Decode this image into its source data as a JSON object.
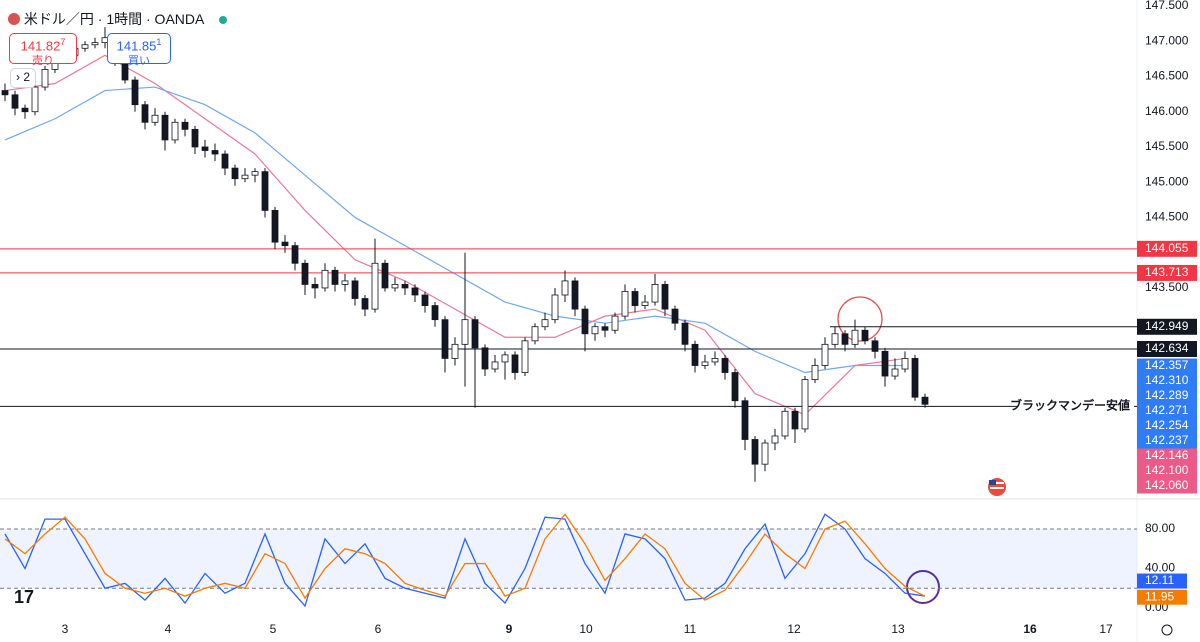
{
  "header": {
    "title": "米ドル／円 · 1時間 · OANDA",
    "sell": {
      "price": "141.82",
      "pipette": "7",
      "label": "売り"
    },
    "buy": {
      "price": "141.85",
      "pipette": "1",
      "label": "買い"
    },
    "indicators": 2
  },
  "chart_data": [
    {
      "type": "candlestick",
      "up_color": "#ffffff",
      "down_color": "#131722",
      "ylim": [
        140.52,
        147.585
      ],
      "xlim": [
        -0.5,
        113.2
      ],
      "yticks": [
        {
          "value": 147.5,
          "label": "147.500"
        },
        {
          "value": 147,
          "label": "147.000"
        },
        {
          "value": 146.5,
          "label": "146.500"
        },
        {
          "value": 146,
          "label": "146.000"
        },
        {
          "value": 145.5,
          "label": "145.500"
        },
        {
          "value": 145,
          "label": "145.000"
        },
        {
          "value": 144.5,
          "label": "144.500"
        },
        {
          "value": 143.5,
          "label": "143.500"
        }
      ],
      "xticks": [
        {
          "value": 6,
          "label": "3"
        },
        {
          "value": 16.3,
          "label": "4"
        },
        {
          "value": 26.8,
          "label": "5"
        },
        {
          "value": 37.3,
          "label": "6"
        },
        {
          "value": 50.4,
          "label": "9",
          "bold": true
        },
        {
          "value": 58.1,
          "label": "10"
        },
        {
          "value": 68.5,
          "label": "11"
        },
        {
          "value": 78.9,
          "label": "12"
        },
        {
          "value": 89.3,
          "label": "13"
        },
        {
          "value": 102.5,
          "label": "16",
          "bold": true
        },
        {
          "value": 110.1,
          "label": "17"
        }
      ],
      "candles": [
        [
          146.3,
          146.4,
          146.15,
          146.24
        ],
        [
          146.24,
          146.3,
          145.95,
          146.05
        ],
        [
          146.05,
          146.1,
          145.9,
          146.0
        ],
        [
          146.0,
          146.4,
          145.95,
          146.35
        ],
        [
          146.35,
          146.65,
          146.3,
          146.6
        ],
        [
          146.6,
          146.8,
          146.55,
          146.75
        ],
        [
          146.75,
          146.9,
          146.7,
          146.8
        ],
        [
          146.8,
          146.95,
          146.75,
          146.9
        ],
        [
          146.9,
          147.0,
          146.85,
          146.95
        ],
        [
          146.95,
          147.05,
          146.9,
          146.98
        ],
        [
          146.98,
          147.2,
          146.9,
          147.05
        ],
        [
          147.05,
          147.1,
          146.65,
          146.7
        ],
        [
          146.7,
          146.75,
          146.4,
          146.45
        ],
        [
          146.45,
          146.5,
          146.0,
          146.1
        ],
        [
          146.1,
          146.15,
          145.75,
          145.85
        ],
        [
          145.85,
          146.05,
          145.8,
          145.95
        ],
        [
          145.95,
          146.0,
          145.45,
          145.6
        ],
        [
          145.6,
          145.9,
          145.55,
          145.85
        ],
        [
          145.85,
          145.9,
          145.65,
          145.75
        ],
        [
          145.75,
          145.8,
          145.4,
          145.5
        ],
        [
          145.5,
          145.6,
          145.35,
          145.45
        ],
        [
          145.45,
          145.55,
          145.3,
          145.4
        ],
        [
          145.4,
          145.45,
          145.1,
          145.2
        ],
        [
          145.2,
          145.25,
          144.95,
          145.05
        ],
        [
          145.05,
          145.2,
          145.0,
          145.1
        ],
        [
          145.1,
          145.2,
          145.0,
          145.15
        ],
        [
          145.15,
          145.2,
          144.5,
          144.6
        ],
        [
          144.6,
          144.65,
          144.05,
          144.15
        ],
        [
          144.15,
          144.25,
          144.0,
          144.1
        ],
        [
          144.1,
          144.15,
          143.75,
          143.85
        ],
        [
          143.85,
          143.9,
          143.4,
          143.55
        ],
        [
          143.55,
          143.65,
          143.35,
          143.5
        ],
        [
          143.5,
          143.85,
          143.45,
          143.75
        ],
        [
          143.75,
          143.8,
          143.45,
          143.55
        ],
        [
          143.55,
          143.7,
          143.45,
          143.6
        ],
        [
          143.6,
          143.65,
          143.25,
          143.35
        ],
        [
          143.35,
          143.4,
          143.1,
          143.2
        ],
        [
          143.2,
          144.2,
          143.15,
          143.85
        ],
        [
          143.85,
          143.9,
          143.45,
          143.5
        ],
        [
          143.5,
          143.65,
          143.45,
          143.55
        ],
        [
          143.55,
          143.6,
          143.4,
          143.5
        ],
        [
          143.5,
          143.55,
          143.3,
          143.4
        ],
        [
          143.4,
          143.45,
          143.15,
          143.25
        ],
        [
          143.25,
          143.3,
          142.95,
          143.05
        ],
        [
          143.05,
          143.1,
          142.3,
          142.5
        ],
        [
          142.5,
          142.8,
          142.4,
          142.7
        ],
        [
          142.7,
          144.0,
          142.1,
          143.05
        ],
        [
          143.05,
          143.1,
          141.8,
          142.65
        ],
        [
          142.65,
          142.7,
          142.25,
          142.35
        ],
        [
          142.35,
          142.55,
          142.3,
          142.45
        ],
        [
          142.45,
          142.6,
          142.2,
          142.55
        ],
        [
          142.55,
          142.6,
          142.2,
          142.3
        ],
        [
          142.3,
          142.8,
          142.25,
          142.75
        ],
        [
          142.75,
          143.0,
          142.7,
          142.95
        ],
        [
          142.95,
          143.15,
          142.9,
          143.05
        ],
        [
          143.05,
          143.5,
          143.0,
          143.4
        ],
        [
          143.4,
          143.75,
          143.3,
          143.6
        ],
        [
          143.6,
          143.65,
          143.1,
          143.2
        ],
        [
          143.2,
          143.25,
          142.6,
          142.85
        ],
        [
          142.85,
          143.0,
          142.75,
          142.95
        ],
        [
          142.95,
          143.0,
          142.8,
          142.9
        ],
        [
          142.9,
          143.15,
          142.85,
          143.1
        ],
        [
          143.1,
          143.55,
          143.05,
          143.45
        ],
        [
          143.45,
          143.5,
          143.15,
          143.25
        ],
        [
          143.25,
          143.4,
          143.2,
          143.3
        ],
        [
          143.3,
          143.7,
          143.25,
          143.55
        ],
        [
          143.55,
          143.6,
          143.1,
          143.2
        ],
        [
          143.2,
          143.25,
          142.9,
          143.0
        ],
        [
          143.0,
          143.05,
          142.6,
          142.7
        ],
        [
          142.7,
          142.75,
          142.3,
          142.4
        ],
        [
          142.4,
          142.55,
          142.35,
          142.45
        ],
        [
          142.45,
          142.6,
          142.4,
          142.5
        ],
        [
          142.5,
          142.55,
          142.2,
          142.3
        ],
        [
          142.3,
          142.35,
          141.8,
          141.9
        ],
        [
          141.9,
          141.95,
          141.2,
          141.35
        ],
        [
          141.35,
          141.4,
          140.75,
          141.0
        ],
        [
          141.0,
          141.35,
          140.9,
          141.3
        ],
        [
          141.3,
          141.5,
          141.2,
          141.4
        ],
        [
          141.4,
          141.8,
          141.35,
          141.75
        ],
        [
          141.75,
          141.8,
          141.3,
          141.5
        ],
        [
          141.5,
          142.25,
          141.45,
          142.2
        ],
        [
          142.2,
          142.5,
          142.15,
          142.4
        ],
        [
          142.4,
          142.8,
          142.35,
          142.7
        ],
        [
          142.7,
          142.95,
          142.65,
          142.85
        ],
        [
          142.85,
          142.9,
          142.6,
          142.7
        ],
        [
          142.7,
          143.05,
          142.65,
          142.9
        ],
        [
          142.9,
          142.95,
          142.7,
          142.75
        ],
        [
          142.75,
          142.8,
          142.5,
          142.6
        ],
        [
          142.6,
          142.65,
          142.1,
          142.25
        ],
        [
          142.25,
          142.5,
          142.2,
          142.35
        ],
        [
          142.35,
          142.6,
          142.3,
          142.5
        ],
        [
          142.5,
          142.55,
          141.9,
          141.95
        ],
        [
          141.95,
          142.0,
          141.8,
          141.85
        ]
      ],
      "ma_x": [
        0,
        5,
        10,
        15,
        20,
        25,
        30,
        35,
        40,
        45,
        50,
        55,
        60,
        65,
        70,
        75,
        80,
        85,
        90
      ],
      "series": [
        {
          "color": "#e8799a",
          "values": [
            146.3,
            146.4,
            146.8,
            146.4,
            145.9,
            145.4,
            144.6,
            143.9,
            143.6,
            143.2,
            142.8,
            142.8,
            143.1,
            143.2,
            142.9,
            142.0,
            141.7,
            142.4,
            142.5
          ]
        },
        {
          "color": "#6fa8ef",
          "values": [
            145.6,
            145.9,
            146.3,
            146.35,
            146.1,
            145.7,
            145.1,
            144.5,
            144.1,
            143.7,
            143.3,
            143.1,
            143.0,
            143.1,
            143.0,
            142.6,
            142.3,
            142.4,
            142.4
          ]
        }
      ],
      "levels": [
        {
          "value": 144.055,
          "color": "#f23645",
          "tag": true
        },
        {
          "value": 143.713,
          "color": "#f23645",
          "tag": true
        },
        {
          "value": 142.949,
          "color": "#131722",
          "tag": true,
          "from": 82.5
        },
        {
          "value": 142.634,
          "color": "#131722",
          "tag": true
        },
        {
          "value": 141.82,
          "color": "#131722",
          "tag": false,
          "annotation": "ブラックマンデー安値"
        }
      ],
      "ma_labels": [
        {
          "value": 142.357,
          "color": "#2f7df6"
        },
        {
          "value": 142.31,
          "label": "142.310",
          "color": "#2f7df6"
        },
        {
          "value": 142.289,
          "color": "#2f7df6"
        },
        {
          "value": 142.271,
          "color": "#2f7df6"
        },
        {
          "value": 142.254,
          "color": "#2f7df6"
        },
        {
          "value": 142.237,
          "color": "#2f7df6"
        },
        {
          "value": 142.146,
          "color": "#ec5a8a"
        },
        {
          "value": 142.1,
          "label": "142.100",
          "color": "#ec5a8a"
        },
        {
          "value": 142.06,
          "label": "142.060",
          "color": "#ec5a8a"
        }
      ]
    },
    {
      "type": "line",
      "ylim": [
        -12.15,
        109.4
      ],
      "yticks": [
        {
          "value": 80,
          "label": "80.00"
        },
        {
          "value": 40,
          "label": "40.00"
        },
        {
          "value": 0,
          "label": "0.00"
        }
      ],
      "band": [
        20,
        80
      ],
      "band_color": "#2962ff",
      "x": [
        0,
        2,
        4,
        6,
        8,
        10,
        12,
        14,
        16,
        18,
        20,
        22,
        24,
        26,
        28,
        30,
        32,
        34,
        36,
        38,
        40,
        42,
        44,
        46,
        48,
        50,
        52,
        54,
        56,
        58,
        60,
        62,
        64,
        66,
        68,
        70,
        72,
        74,
        76,
        78,
        80,
        82,
        84,
        86,
        88,
        90,
        92
      ],
      "series": [
        {
          "color": "#2962ff",
          "values": [
            75,
            40,
            90,
            90,
            55,
            20,
            25,
            8,
            30,
            5,
            35,
            15,
            25,
            75,
            25,
            2,
            70,
            45,
            65,
            30,
            20,
            15,
            10,
            70,
            25,
            5,
            40,
            92,
            90,
            45,
            15,
            75,
            70,
            50,
            8,
            10,
            25,
            60,
            85,
            30,
            55,
            95,
            80,
            50,
            35,
            15,
            12.11
          ]
        },
        {
          "color": "#f57c00",
          "values": [
            70,
            55,
            75,
            92,
            70,
            35,
            20,
            15,
            20,
            12,
            20,
            25,
            20,
            55,
            45,
            10,
            40,
            60,
            55,
            45,
            25,
            18,
            12,
            45,
            45,
            12,
            20,
            70,
            95,
            65,
            28,
            50,
            75,
            60,
            25,
            8,
            18,
            45,
            75,
            55,
            40,
            80,
            88,
            65,
            40,
            22,
            11.95
          ]
        }
      ]
    }
  ]
}
